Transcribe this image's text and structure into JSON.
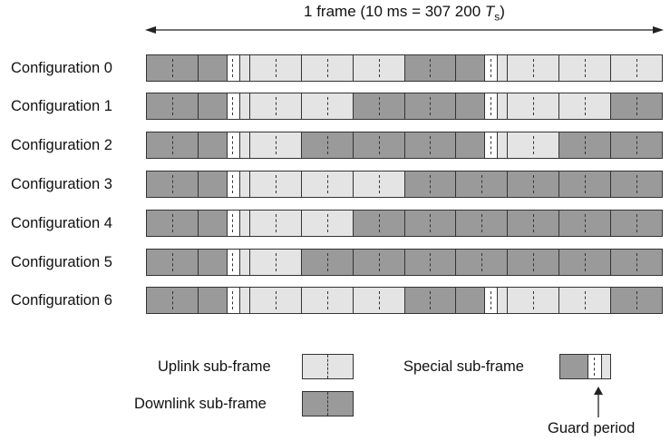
{
  "frame": {
    "label_prefix": "1 frame (10 ms = 307 200 ",
    "label_symbol": "T",
    "label_subscript": "s",
    "label_suffix": ")"
  },
  "configurations": [
    {
      "label": "Configuration 0",
      "subframes": [
        "D",
        "S",
        "U",
        "U",
        "U",
        "D",
        "S",
        "U",
        "U",
        "U"
      ]
    },
    {
      "label": "Configuration 1",
      "subframes": [
        "D",
        "S",
        "U",
        "U",
        "D",
        "D",
        "S",
        "U",
        "U",
        "D"
      ]
    },
    {
      "label": "Configuration 2",
      "subframes": [
        "D",
        "S",
        "U",
        "D",
        "D",
        "D",
        "S",
        "U",
        "D",
        "D"
      ]
    },
    {
      "label": "Configuration 3",
      "subframes": [
        "D",
        "S",
        "U",
        "U",
        "U",
        "D",
        "D",
        "D",
        "D",
        "D"
      ]
    },
    {
      "label": "Configuration 4",
      "subframes": [
        "D",
        "S",
        "U",
        "U",
        "D",
        "D",
        "D",
        "D",
        "D",
        "D"
      ]
    },
    {
      "label": "Configuration 5",
      "subframes": [
        "D",
        "S",
        "U",
        "D",
        "D",
        "D",
        "D",
        "D",
        "D",
        "D"
      ]
    },
    {
      "label": "Configuration 6",
      "subframes": [
        "D",
        "S",
        "U",
        "U",
        "U",
        "D",
        "S",
        "U",
        "U",
        "D"
      ]
    }
  ],
  "legend": {
    "uplink": "Uplink sub-frame",
    "downlink": "Downlink sub-frame",
    "special": "Special sub-frame",
    "guard_period": "Guard period"
  },
  "colors": {
    "downlink": "#9a9a9a",
    "uplink": "#e4e4e4",
    "guard": "#ffffff",
    "outline": "#333333"
  }
}
